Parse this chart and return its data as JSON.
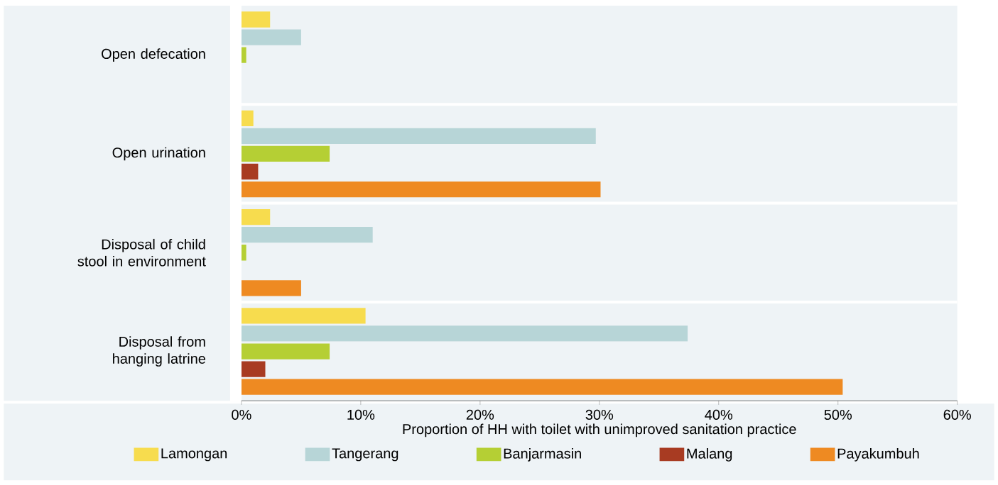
{
  "chart_data": {
    "type": "bar",
    "orientation": "horizontal",
    "xlabel": "Proportion of HH with toilet with unimproved sanitation practice",
    "categories": [
      "Open defecation",
      "Open urination",
      "Disposal of child stool in environment",
      "Disposal from hanging latrine"
    ],
    "series": [
      {
        "name": "Lamongan",
        "color": "#f7dc4e",
        "values": [
          2.4,
          1.0,
          2.4,
          10.4
        ]
      },
      {
        "name": "Tangerang",
        "color": "#b7d5d7",
        "values": [
          5.0,
          29.7,
          11.0,
          37.4
        ]
      },
      {
        "name": "Banjarmasin",
        "color": "#b5cf34",
        "values": [
          0.4,
          7.4,
          0.4,
          7.4
        ]
      },
      {
        "name": "Malang",
        "color": "#a83b22",
        "values": [
          null,
          1.4,
          null,
          2.0
        ]
      },
      {
        "name": "Payakumbuh",
        "color": "#ee8a22",
        "values": [
          null,
          30.1,
          5.0,
          50.4
        ]
      }
    ],
    "xlim": [
      0,
      60
    ],
    "xticks": [
      {
        "value": 0,
        "label": "0%"
      },
      {
        "value": 10,
        "label": "10%"
      },
      {
        "value": 20,
        "label": "20%"
      },
      {
        "value": 30,
        "label": "30%"
      },
      {
        "value": 40,
        "label": "40%"
      },
      {
        "value": 50,
        "label": "50%"
      },
      {
        "value": 60,
        "label": "60%"
      }
    ],
    "legend": "bottom",
    "grid": false
  }
}
